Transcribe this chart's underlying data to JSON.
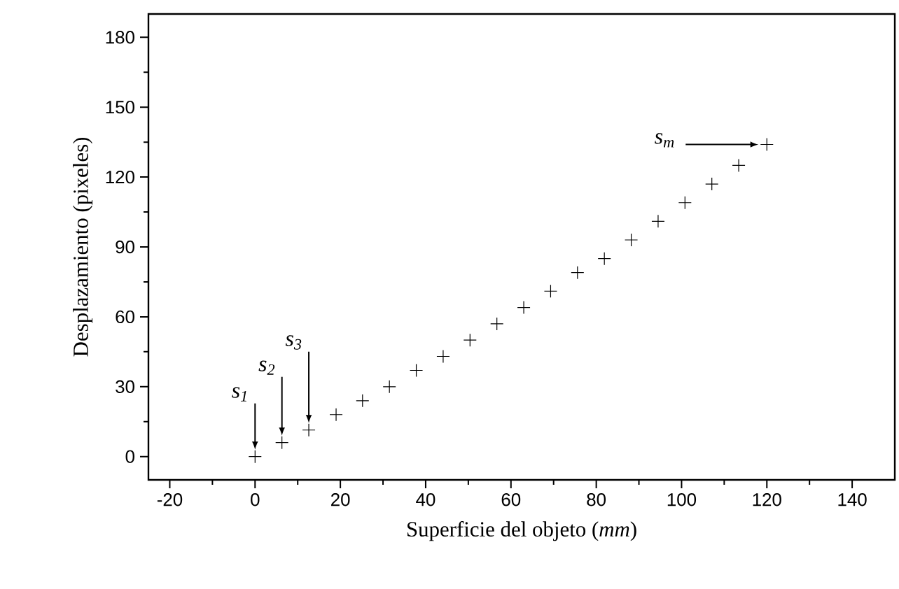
{
  "chart_data": {
    "type": "scatter",
    "xlabel": "Superficie del objeto (*mm*)",
    "ylabel": "Desplazamiento (pixeles)",
    "x": [
      0,
      6.3,
      12.6,
      19,
      25.2,
      31.5,
      37.8,
      44.1,
      50.4,
      56.7,
      63,
      69.3,
      75.6,
      81.9,
      88.2,
      94.5,
      100.8,
      107.1,
      113.4,
      120
    ],
    "values": [
      0,
      6,
      11.4,
      18,
      24,
      30,
      37,
      43,
      50,
      57,
      64,
      71,
      79,
      85,
      93,
      101,
      109,
      117,
      125,
      134
    ],
    "color": "#000000",
    "marker": "cross",
    "xlim": [
      -25,
      150
    ],
    "ylim": [
      -10,
      190
    ],
    "xticks": [
      -20,
      0,
      20,
      40,
      60,
      80,
      100,
      120,
      140
    ],
    "yticks": [
      0,
      30,
      60,
      90,
      120,
      150,
      180
    ],
    "annotations": [
      "s$_{1}$",
      "s$_{2}$",
      "s$_{3}$",
      "s$_{m}$"
    ]
  }
}
